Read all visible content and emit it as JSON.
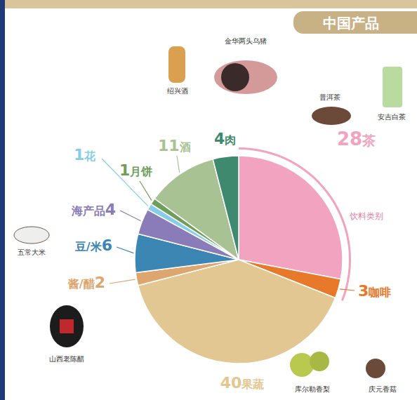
{
  "chart_data": {
    "type": "pie",
    "title": "中国产品",
    "categories": [
      "茶",
      "咖啡",
      "果蔬",
      "酱/醋",
      "豆/米",
      "海产品",
      "花",
      "月饼",
      "酒",
      "肉"
    ],
    "values": [
      28,
      3,
      40,
      2,
      6,
      4,
      1,
      1,
      11,
      4
    ],
    "colors": [
      "#f2a3c0",
      "#e8782a",
      "#e2c793",
      "#dca66e",
      "#3c86b4",
      "#8a7cb8",
      "#86cde6",
      "#6f9e5c",
      "#a9c294",
      "#3f8a6e"
    ],
    "data_labels": true,
    "annotations": [
      "饮料类别",
      "金华两头乌猪",
      "绍兴酒",
      "普洱茶",
      "安吉白茶",
      "五常大米",
      "山西老陈醋",
      "库尔勒香梨",
      "庆元香菇"
    ]
  }
}
